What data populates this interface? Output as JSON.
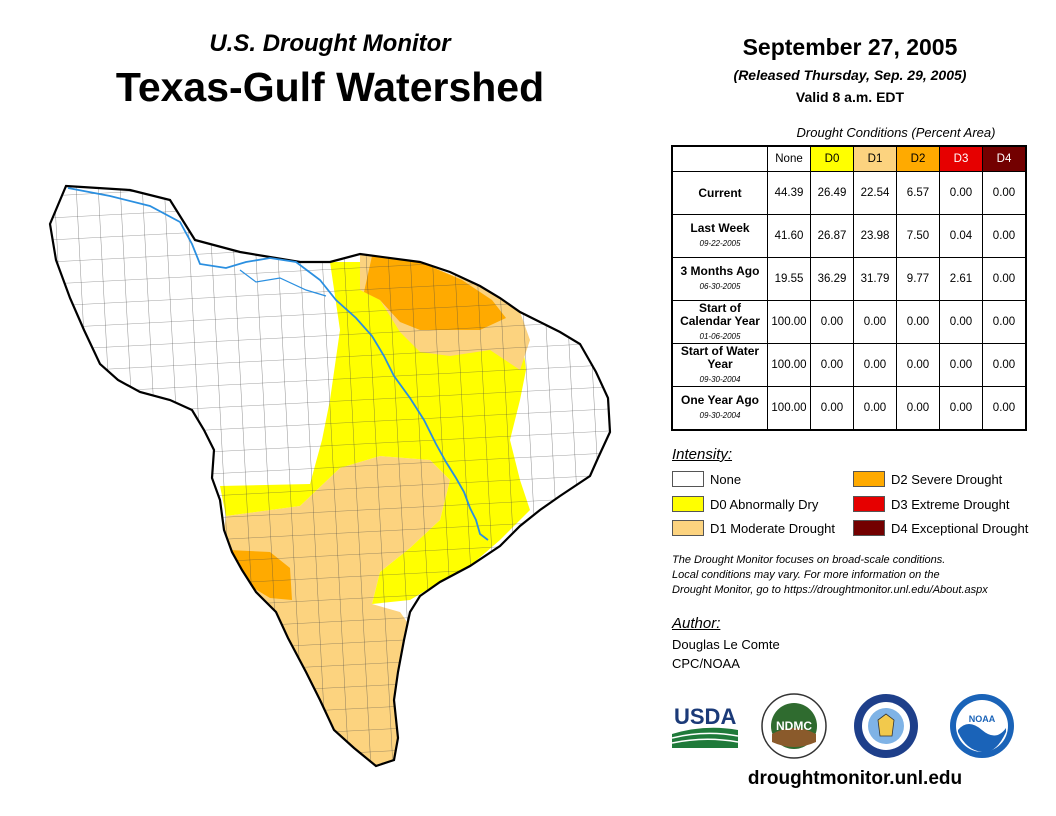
{
  "header": {
    "subtitle": "U.S. Drought Monitor",
    "title": "Texas-Gulf Watershed",
    "date": "September 27, 2005",
    "released": "(Released Thursday, Sep. 29, 2005)",
    "valid": "Valid 8 a.m. EDT"
  },
  "table": {
    "caption": "Drought Conditions (Percent Area)",
    "columns": [
      "None",
      "D0",
      "D1",
      "D2",
      "D3",
      "D4"
    ],
    "column_colors": [
      "#ffffff",
      "#ffff00",
      "#fcd37f",
      "#ffaa00",
      "#e60000",
      "#730000"
    ],
    "rows": [
      {
        "label": "Current",
        "date": "",
        "values": [
          "44.39",
          "26.49",
          "22.54",
          "6.57",
          "0.00",
          "0.00"
        ]
      },
      {
        "label": "Last Week",
        "date": "09-22-2005",
        "values": [
          "41.60",
          "26.87",
          "23.98",
          "7.50",
          "0.04",
          "0.00"
        ]
      },
      {
        "label": "3 Months Ago",
        "date": "06-30-2005",
        "values": [
          "19.55",
          "36.29",
          "31.79",
          "9.77",
          "2.61",
          "0.00"
        ]
      },
      {
        "label": "Start of Calendar Year",
        "date": "01-06-2005",
        "values": [
          "100.00",
          "0.00",
          "0.00",
          "0.00",
          "0.00",
          "0.00"
        ]
      },
      {
        "label": "Start of Water Year",
        "date": "09-30-2004",
        "values": [
          "100.00",
          "0.00",
          "0.00",
          "0.00",
          "0.00",
          "0.00"
        ]
      },
      {
        "label": "One Year Ago",
        "date": "09-30-2004",
        "values": [
          "100.00",
          "0.00",
          "0.00",
          "0.00",
          "0.00",
          "0.00"
        ]
      }
    ]
  },
  "legend": {
    "title": "Intensity:",
    "items": [
      {
        "label": "None",
        "color": "#ffffff"
      },
      {
        "label": "D0 Abnormally Dry",
        "color": "#ffff00"
      },
      {
        "label": "D1 Moderate Drought",
        "color": "#fcd37f"
      },
      {
        "label": "D2 Severe Drought",
        "color": "#ffaa00"
      },
      {
        "label": "D3 Extreme Drought",
        "color": "#e60000"
      },
      {
        "label": "D4 Exceptional Drought",
        "color": "#730000"
      }
    ]
  },
  "note": {
    "line1": "The Drought Monitor focuses on broad-scale conditions.",
    "line2": "Local conditions may vary. For more information on the",
    "line3": "Drought Monitor, go to https://droughtmonitor.unl.edu/About.aspx"
  },
  "author": {
    "label": "Author:",
    "name": "Douglas Le Comte",
    "org": "CPC/NOAA"
  },
  "logos": {
    "usda": "USDA",
    "ndmc": "NDMC",
    "noaa": "NOAA"
  },
  "footer_url": "droughtmonitor.unl.edu"
}
